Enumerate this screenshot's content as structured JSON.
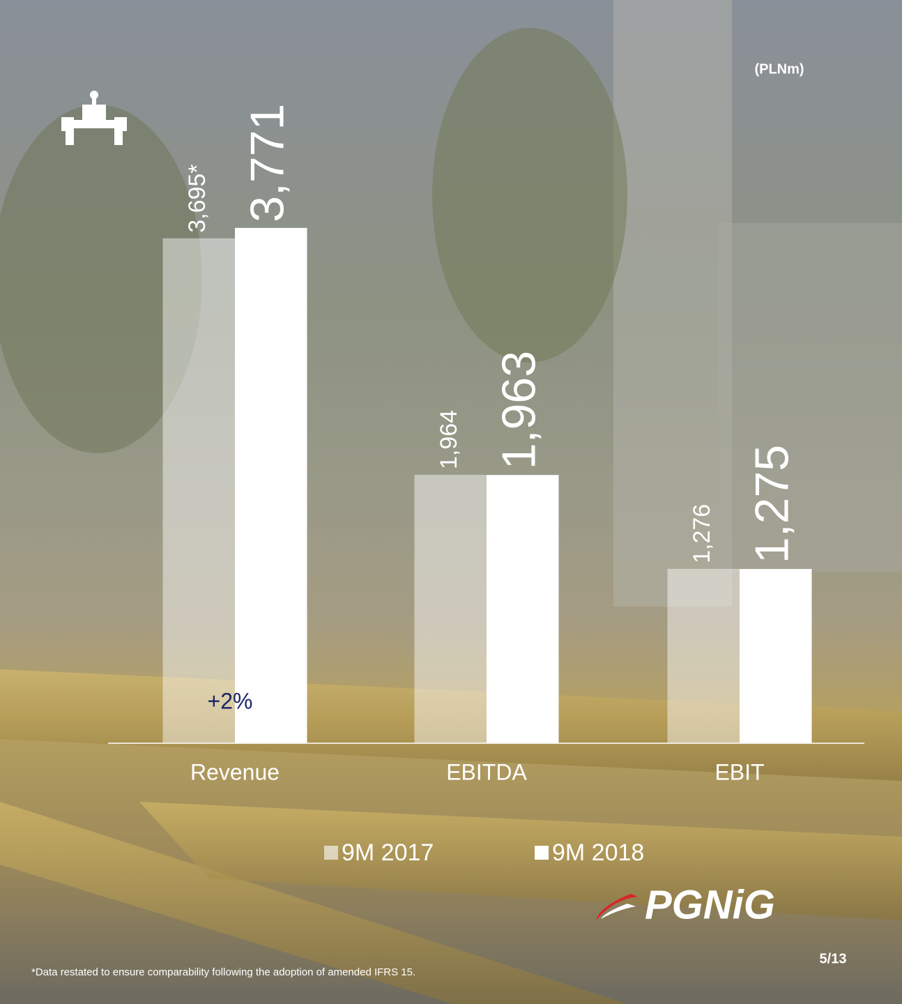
{
  "chart_data": {
    "type": "bar",
    "unit_label": "(PLNm)",
    "categories": [
      "Revenue",
      "EBITDA",
      "EBIT"
    ],
    "series": [
      {
        "name": "9M 2017",
        "color": "#ffffff",
        "opacity": 0.45,
        "values": [
          3695,
          1964,
          1276
        ],
        "value_labels": [
          "3,695*",
          "1,964",
          "1,276"
        ]
      },
      {
        "name": "9M 2018",
        "color": "#ffffff",
        "opacity": 1,
        "values": [
          3771,
          1963,
          1275
        ],
        "value_labels": [
          "3,771",
          "1,963",
          "1,275"
        ]
      }
    ],
    "ylim": [
      0,
      4000
    ],
    "annotation": "+2%",
    "footnote": "*Data restated to ensure comparability following the adoption of amended IFRS 15.",
    "logo": "PGNiG",
    "page_number": "5/13"
  }
}
